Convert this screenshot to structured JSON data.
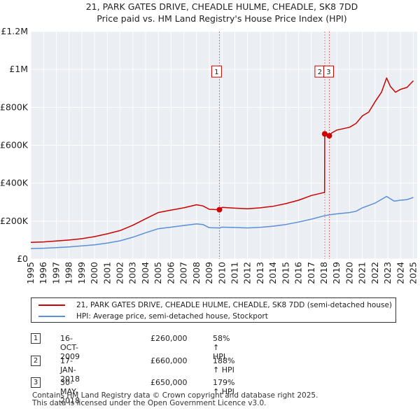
{
  "chart_data": {
    "type": "line",
    "title": "21, PARK GATES DRIVE, CHEADLE HULME, CHEADLE, SK8 7DD",
    "subtitle": "Price paid vs. HM Land Registry's House Price Index (HPI)",
    "y_ticks": [
      {
        "value": 0,
        "label": "£0"
      },
      {
        "value": 200000,
        "label": "£200K"
      },
      {
        "value": 400000,
        "label": "£400K"
      },
      {
        "value": 600000,
        "label": "£600K"
      },
      {
        "value": 800000,
        "label": "£800K"
      },
      {
        "value": 1000000,
        "label": "£1M"
      },
      {
        "value": 1200000,
        "label": "£1.2M"
      }
    ],
    "x_ticks": [
      "1995",
      "1996",
      "1997",
      "1998",
      "1999",
      "2000",
      "2001",
      "2002",
      "2003",
      "2004",
      "2005",
      "2006",
      "2007",
      "2008",
      "2009",
      "2010",
      "2011",
      "2012",
      "2013",
      "2014",
      "2015",
      "2016",
      "2017",
      "2018",
      "2019",
      "2020",
      "2021",
      "2022",
      "2023",
      "2024",
      "2025"
    ],
    "xlim": [
      1995,
      2025.3
    ],
    "ylim": [
      0,
      1200000
    ],
    "grid": true,
    "series": [
      {
        "name": "21, PARK GATES DRIVE, CHEADLE HULME, CHEADLE, SK8 7DD (semi-detached house)",
        "color": "#cc0000",
        "points": [
          [
            1995,
            88000
          ],
          [
            1996,
            90000
          ],
          [
            1997,
            95000
          ],
          [
            1998,
            100000
          ],
          [
            1999,
            107000
          ],
          [
            2000,
            118000
          ],
          [
            2001,
            133000
          ],
          [
            2002,
            150000
          ],
          [
            2003,
            178000
          ],
          [
            2004,
            212000
          ],
          [
            2005,
            245000
          ],
          [
            2006,
            258000
          ],
          [
            2007,
            270000
          ],
          [
            2008,
            286000
          ],
          [
            2008.5,
            280000
          ],
          [
            2009,
            262000
          ],
          [
            2009.79,
            260000
          ],
          [
            2010,
            272000
          ],
          [
            2011,
            268000
          ],
          [
            2012,
            265000
          ],
          [
            2013,
            270000
          ],
          [
            2014,
            278000
          ],
          [
            2015,
            292000
          ],
          [
            2016,
            310000
          ],
          [
            2017,
            335000
          ],
          [
            2017.95,
            350000
          ],
          [
            2018.04,
            350000
          ],
          [
            2018.05,
            660000
          ],
          [
            2018.2,
            660000
          ],
          [
            2018.41,
            650000
          ],
          [
            2018.6,
            665000
          ],
          [
            2019,
            680000
          ],
          [
            2020,
            695000
          ],
          [
            2020.5,
            715000
          ],
          [
            2021,
            755000
          ],
          [
            2021.5,
            775000
          ],
          [
            2022,
            830000
          ],
          [
            2022.5,
            880000
          ],
          [
            2022.9,
            955000
          ],
          [
            2023.2,
            910000
          ],
          [
            2023.6,
            880000
          ],
          [
            2024,
            895000
          ],
          [
            2024.5,
            905000
          ],
          [
            2025,
            940000
          ]
        ]
      },
      {
        "name": "HPI: Average price, semi-detached house, Stockport",
        "color": "#5b8fd6",
        "points": [
          [
            1995,
            55000
          ],
          [
            1996,
            57000
          ],
          [
            1997,
            60000
          ],
          [
            1998,
            64000
          ],
          [
            1999,
            69000
          ],
          [
            2000,
            75000
          ],
          [
            2001,
            84000
          ],
          [
            2002,
            96000
          ],
          [
            2003,
            115000
          ],
          [
            2004,
            138000
          ],
          [
            2005,
            160000
          ],
          [
            2006,
            168000
          ],
          [
            2007,
            177000
          ],
          [
            2008,
            185000
          ],
          [
            2008.5,
            182000
          ],
          [
            2009,
            165000
          ],
          [
            2009.79,
            164000
          ],
          [
            2010,
            168000
          ],
          [
            2011,
            166000
          ],
          [
            2012,
            164000
          ],
          [
            2013,
            167000
          ],
          [
            2014,
            173000
          ],
          [
            2015,
            182000
          ],
          [
            2016,
            195000
          ],
          [
            2017,
            210000
          ],
          [
            2018,
            228000
          ],
          [
            2018.41,
            233000
          ],
          [
            2019,
            238000
          ],
          [
            2020,
            245000
          ],
          [
            2020.5,
            252000
          ],
          [
            2021,
            270000
          ],
          [
            2022,
            295000
          ],
          [
            2022.9,
            330000
          ],
          [
            2023.5,
            305000
          ],
          [
            2024,
            310000
          ],
          [
            2024.5,
            313000
          ],
          [
            2025,
            325000
          ]
        ]
      }
    ],
    "sales": [
      {
        "label": "1",
        "x": 2009.79,
        "y": 260000
      },
      {
        "label": "2",
        "x": 2018.05,
        "y": 660000
      },
      {
        "label": "3",
        "x": 2018.41,
        "y": 650000
      }
    ]
  },
  "legend": {
    "property_label": "21, PARK GATES DRIVE, CHEADLE HULME, CHEADLE, SK8 7DD (semi-detached house)",
    "hpi_label": "HPI: Average price, semi-detached house, Stockport",
    "property_color": "#cc0000",
    "hpi_color": "#5b8fd6"
  },
  "transactions": [
    {
      "num": "1",
      "date": "16-OCT-2009",
      "price": "£260,000",
      "hpi": "58% ↑ HPI"
    },
    {
      "num": "2",
      "date": "17-JAN-2018",
      "price": "£660,000",
      "hpi": "188% ↑ HPI"
    },
    {
      "num": "3",
      "date": "30-MAY-2018",
      "price": "£650,000",
      "hpi": "179% ↑ HPI"
    }
  ],
  "footer": {
    "line1": "Contains HM Land Registry data © Crown copyright and database right 2025.",
    "line2": "This data is licensed under the Open Government Licence v3.0."
  }
}
